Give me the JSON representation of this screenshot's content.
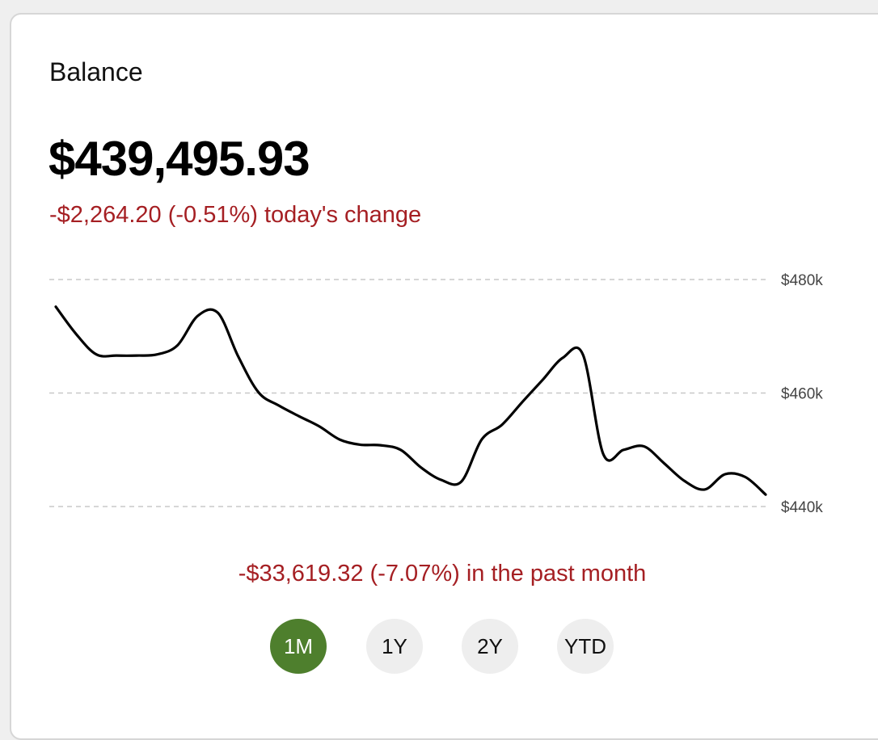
{
  "card": {
    "title": "Balance",
    "balance": "$439,495.93",
    "today_change": "-$2,264.20 (-0.51%) today's change",
    "period_change": "-$33,619.32 (-7.07%) in the past month"
  },
  "ranges": [
    {
      "label": "1M",
      "selected": true
    },
    {
      "label": "1Y",
      "selected": false
    },
    {
      "label": "2Y",
      "selected": false
    },
    {
      "label": "YTD",
      "selected": false
    }
  ],
  "colors": {
    "negative": "#a51f23",
    "selected_range_bg": "#4e7f2d",
    "selected_range_text": "#ffffff",
    "range_bg": "#eeeeee",
    "line": "#000000",
    "grid": "#c8c8c8"
  },
  "chart_data": {
    "type": "line",
    "title": "",
    "xlabel": "",
    "ylabel": "",
    "ylim": [
      440000,
      480000
    ],
    "yticks": [
      480000,
      460000,
      440000
    ],
    "ytick_labels": [
      "$480k",
      "$460k",
      "$440k"
    ],
    "grid": true,
    "series": [
      {
        "values": [
          475200,
          470400,
          466800,
          466600,
          466600,
          466800,
          468400,
          473600,
          474100,
          466400,
          460100,
          457800,
          455900,
          454100,
          451800,
          450900,
          450800,
          450000,
          446900,
          444700,
          444400,
          451800,
          454400,
          458400,
          462300,
          466200,
          466700,
          449200,
          450000,
          450600,
          447600,
          444500,
          443000,
          445700,
          445200,
          442100
        ]
      }
    ]
  }
}
